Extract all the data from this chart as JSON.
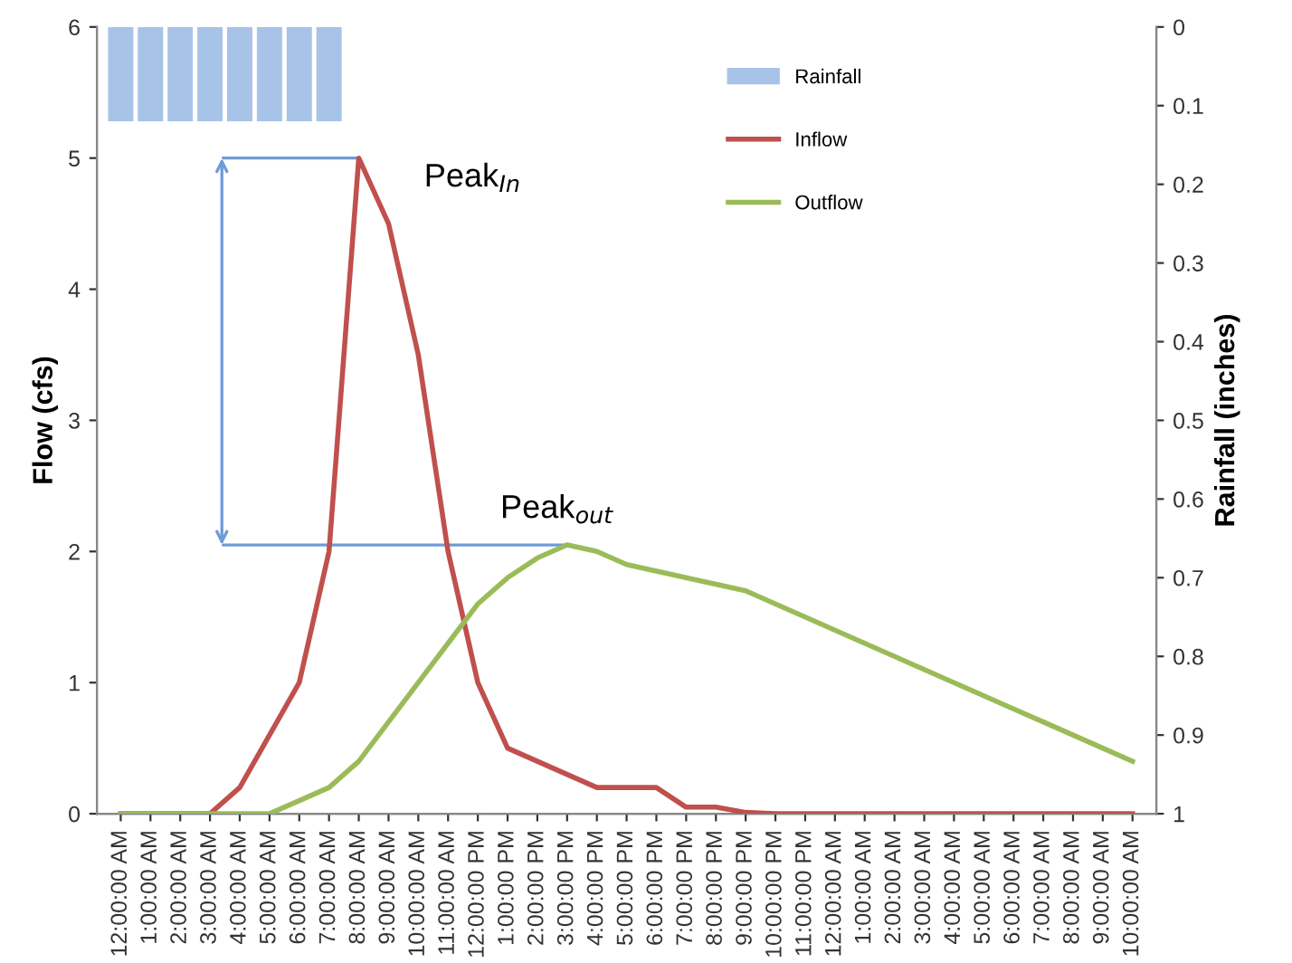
{
  "chart_data": {
    "type": "line",
    "categories": [
      "12:00:00 AM",
      "1:00:00 AM",
      "2:00:00 AM",
      "3:00:00 AM",
      "4:00:00 AM",
      "5:00:00 AM",
      "6:00:00 AM",
      "7:00:00 AM",
      "8:00:00 AM",
      "9:00:00 AM",
      "10:00:00 AM",
      "11:00:00 AM",
      "12:00:00 PM",
      "1:00:00 PM",
      "2:00:00 PM",
      "3:00:00 PM",
      "4:00:00 PM",
      "5:00:00 PM",
      "6:00:00 PM",
      "7:00:00 PM",
      "8:00:00 PM",
      "9:00:00 PM",
      "10:00:00 PM",
      "11:00:00 PM",
      "12:00:00 AM",
      "1:00:00 AM",
      "2:00:00 AM",
      "3:00:00 AM",
      "4:00:00 AM",
      "5:00:00 AM",
      "6:00:00 AM",
      "7:00:00 AM",
      "8:00:00 AM",
      "9:00:00 AM",
      "10:00:00 AM"
    ],
    "series": [
      {
        "name": "Rainfall",
        "type": "bar",
        "axis": "y2",
        "color": "#a7c3e8",
        "values": [
          0.12,
          0.12,
          0.12,
          0.12,
          0.12,
          0.12,
          0.12,
          0.12,
          null,
          null,
          null,
          null,
          null,
          null,
          null,
          null,
          null,
          null,
          null,
          null,
          null,
          null,
          null,
          null,
          null,
          null,
          null,
          null,
          null,
          null,
          null,
          null,
          null,
          null,
          null
        ]
      },
      {
        "name": "Inflow",
        "color": "#c0504d",
        "values": [
          0,
          0,
          0,
          0,
          0.2,
          0.6,
          1.0,
          2.0,
          5.0,
          4.5,
          3.5,
          2.0,
          1.0,
          0.5,
          0.4,
          0.3,
          0.2,
          0.2,
          0.2,
          0.05,
          0.05,
          0.01,
          0,
          0,
          0,
          0,
          0,
          0,
          0,
          0,
          0,
          0,
          0,
          0,
          0
        ]
      },
      {
        "name": "Outflow",
        "color": "#9bbb59",
        "values": [
          0,
          0,
          0,
          0,
          0,
          0,
          0.1,
          0.2,
          0.4,
          0.7,
          1.0,
          1.3,
          1.6,
          1.8,
          1.95,
          2.05,
          2.0,
          1.9,
          1.85,
          1.8,
          1.75,
          1.7,
          1.6,
          1.5,
          1.4,
          1.3,
          1.2,
          1.1,
          1.0,
          0.9,
          0.8,
          0.7,
          0.6,
          0.5,
          0.4
        ]
      }
    ],
    "ylabel": "Flow (cfs)",
    "y2label": "Rainfall (inches)",
    "ylim": [
      0,
      6
    ],
    "yticks": [
      0,
      1,
      2,
      3,
      4,
      5,
      6
    ],
    "y2lim": [
      1,
      0
    ],
    "y2ticks": [
      0,
      0.1,
      0.2,
      0.3,
      0.4,
      0.5,
      0.6,
      0.7,
      0.8,
      0.9,
      1
    ],
    "annotations": [
      {
        "text": "Peak$_{In}$",
        "x": "8:00:00 AM",
        "y": 5.0
      },
      {
        "text": "Peak$_{out}$",
        "x": "3:00:00 PM",
        "y": 2.05
      }
    ],
    "ref_lines": [
      {
        "axis": "y",
        "value": 5.0,
        "color": "#6f9bd8"
      },
      {
        "axis": "y",
        "value": 2.05,
        "color": "#6f9bd8"
      }
    ],
    "legend": "top right",
    "grid": false,
    "marker": "none",
    "line_style": "solid"
  }
}
